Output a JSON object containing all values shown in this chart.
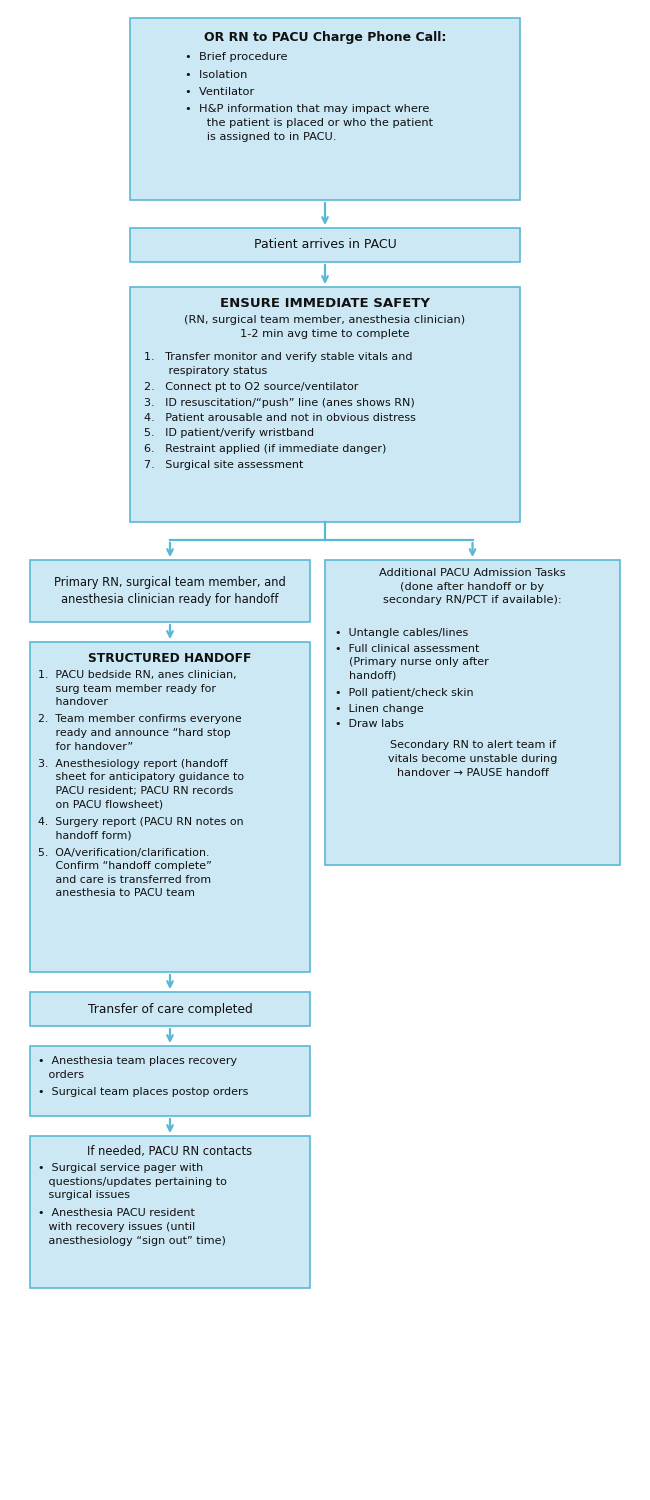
{
  "bg_color": "#ffffff",
  "box_bg": "#cce8f4",
  "box_edge": "#5bb8d4",
  "arrow_color": "#5bb8d4",
  "text_color": "#111111",
  "box1_title": "OR RN to PACU Charge Phone Call:",
  "box1_items": [
    "•  Brief procedure",
    "•  Isolation",
    "•  Ventilator",
    "•  H&P information that may impact where\n      the patient is placed or who the patient\n      is assigned to in PACU."
  ],
  "box2_text": "Patient arrives in PACU",
  "box3_title": "ENSURE IMMEDIATE SAFETY",
  "box3_sub": "(RN, surgical team member, anesthesia clinician)\n1-2 min avg time to complete",
  "box3_items": [
    "1.   Transfer monitor and verify stable vitals and\n       respiratory status",
    "2.   Connect pt to O2 source/ventilator",
    "3.   ID resuscitation/“push” line (anes shows RN)",
    "4.   Patient arousable and not in obvious distress",
    "5.   ID patient/verify wristband",
    "6.   Restraint applied (if immediate danger)",
    "7.   Surgical site assessment"
  ],
  "box4l_text": "Primary RN, surgical team member, and\nanesthesia clinician ready for handoff",
  "box4r_title": "Additional PACU Admission Tasks\n(done after handoff or by\nsecondary RN/PCT if available):",
  "box4r_items": [
    "•  Untangle cables/lines",
    "•  Full clinical assessment\n    (Primary nurse only after\n    handoff)",
    "•  Poll patient/check skin",
    "•  Linen change",
    "•  Draw labs"
  ],
  "box4r_footer": "Secondary RN to alert team if\nvitals become unstable during\nhandover → PAUSE handoff",
  "box5_title": "STRUCTURED HANDOFF",
  "box5_items": [
    "1.  PACU bedside RN, anes clinician,\n     surg team member ready for\n     handover",
    "2.  Team member confirms everyone\n     ready and announce “hard stop\n     for handover”",
    "3.  Anesthesiology report (handoff\n     sheet for anticipatory guidance to\n     PACU resident; PACU RN records\n     on PACU flowsheet)",
    "4.  Surgery report (PACU RN notes on\n     handoff form)",
    "5.  OA/verification/clarification.\n     Confirm “handoff complete”\n     and care is transferred from\n     anesthesia to PACU team"
  ],
  "box6_text": "Transfer of care completed",
  "box7_items": [
    "•  Anesthesia team places recovery\n   orders",
    "•  Surgical team places postop orders"
  ],
  "box8_intro": "If needed, PACU RN contacts",
  "box8_items": [
    "•  Surgical service pager with\n   questions/updates pertaining to\n   surgical issues",
    "•  Anesthesia PACU resident\n   with recovery issues (until\n   anesthesiology “sign out” time)"
  ]
}
